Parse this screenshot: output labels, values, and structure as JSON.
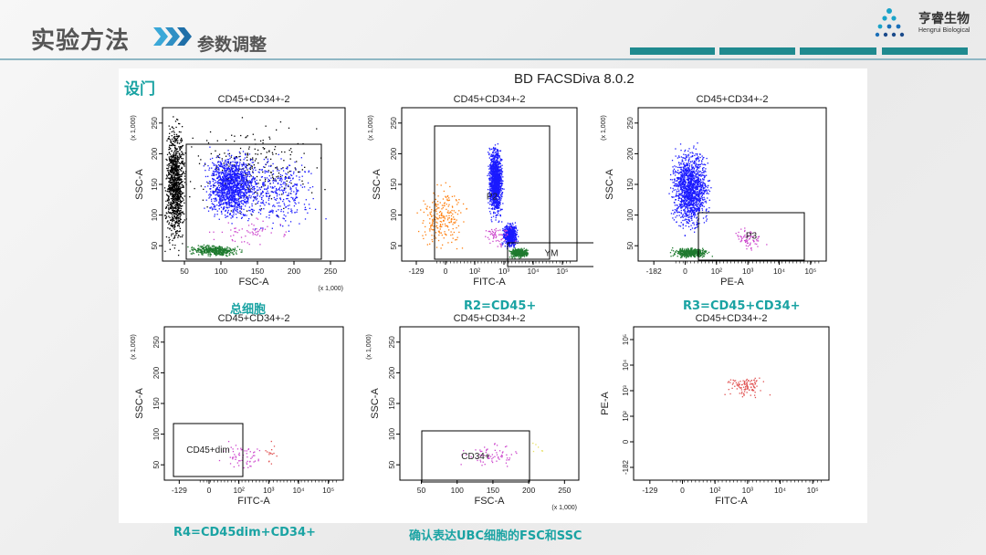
{
  "header": {
    "title": "实验方法",
    "subtitle": "参数调整",
    "brand_cn": "亨睿生物",
    "brand_en": "Hengrui Biological",
    "accent": "#1f8a8f"
  },
  "panel": {
    "label": "设门",
    "software_title": "BD FACSDiva 8.0.2"
  },
  "chart_data": [
    {
      "type": "scatter",
      "plot_title": "CD45+CD34+-2",
      "xlabel": "FSC-A",
      "ylabel": "SSC-A",
      "x_ticks": [
        "50",
        "100",
        "150",
        "200",
        "250"
      ],
      "x_mult": "(x 1,000)",
      "y_ticks": [
        "50",
        "100",
        "150",
        "200",
        "250"
      ],
      "y_mult": "(x 1,000)",
      "gates": [
        {
          "name": ""
        }
      ],
      "caption": "总细胞",
      "populations": [
        {
          "color": "#000000",
          "x": [
            0,
            35
          ],
          "y": [
            0,
            260
          ],
          "n": 1100
        },
        {
          "color": "#000000",
          "x": [
            0,
            260
          ],
          "y": [
            60,
            260
          ],
          "n": 260
        },
        {
          "color": "#1a1aff",
          "x": [
            55,
            140
          ],
          "y": [
            60,
            200
          ],
          "n": 1300
        },
        {
          "color": "#1a1aff",
          "x": [
            80,
            240
          ],
          "y": [
            40,
            200
          ],
          "n": 420
        },
        {
          "color": "#1e7a2e",
          "x": [
            30,
            120
          ],
          "y": [
            8,
            30
          ],
          "n": 420
        },
        {
          "color": "#cc44cc",
          "x": [
            40,
            200
          ],
          "y": [
            20,
            80
          ],
          "n": 60
        }
      ]
    },
    {
      "type": "scatter",
      "plot_title": "CD45+CD34+-2",
      "xlabel": "FITC-A",
      "ylabel": "SSC-A",
      "x_ticks": [
        "-129",
        "0",
        "10²",
        "10³",
        "10⁴",
        "10⁵"
      ],
      "y_ticks": [
        "50",
        "100",
        "150",
        "200",
        "250"
      ],
      "y_mult": "(x 1,000)",
      "gates": [
        {
          "name": "P2"
        },
        {
          "name": "YM"
        }
      ],
      "caption": "R2=CD45+",
      "populations": [
        {
          "color": "#1a1aff",
          "x": [
            2.3,
            2.9
          ],
          "y": [
            60,
            210
          ],
          "n": 1300
        },
        {
          "color": "#1a1aff",
          "x": [
            2.8,
            3.4
          ],
          "y": [
            20,
            70
          ],
          "n": 600
        },
        {
          "color": "#1e7a2e",
          "x": [
            3.0,
            3.8
          ],
          "y": [
            5,
            25
          ],
          "n": 400
        },
        {
          "color": "#ff7f0e",
          "x": [
            -0.3,
            1.8
          ],
          "y": [
            5,
            150
          ],
          "n": 230
        },
        {
          "color": "#cc44cc",
          "x": [
            2.0,
            3.3
          ],
          "y": [
            20,
            70
          ],
          "n": 60
        }
      ]
    },
    {
      "type": "scatter",
      "plot_title": "CD45+CD34+-2",
      "xlabel": "PE-A",
      "ylabel": "SSC-A",
      "x_ticks": [
        "-182",
        "0",
        "10²",
        "10³",
        "10⁴",
        "10⁵"
      ],
      "y_ticks": [
        "50",
        "100",
        "150",
        "200",
        "250"
      ],
      "y_mult": "(x 1,000)",
      "gates": [
        {
          "name": "P3"
        }
      ],
      "caption": "R3=CD45+CD34+",
      "populations": [
        {
          "color": "#1a1aff",
          "x": [
            0.3,
            1.8
          ],
          "y": [
            40,
            210
          ],
          "n": 1400
        },
        {
          "color": "#1e7a2e",
          "x": [
            0.3,
            1.8
          ],
          "y": [
            5,
            25
          ],
          "n": 400
        },
        {
          "color": "#cc44cc",
          "x": [
            2.2,
            3.6
          ],
          "y": [
            15,
            65
          ],
          "n": 70
        }
      ]
    },
    {
      "type": "scatter",
      "plot_title": "CD45+CD34+-2",
      "xlabel": "FITC-A",
      "ylabel": "SSC-A",
      "x_ticks": [
        "-129",
        "0",
        "10²",
        "10³",
        "10⁴",
        "10⁵"
      ],
      "y_ticks": [
        "50",
        "100",
        "150",
        "200",
        "250"
      ],
      "y_mult": "(x 1,000)",
      "gates": [
        {
          "name": "CD45+dim"
        }
      ],
      "caption": "R4=CD45dim+CD34+",
      "populations": [
        {
          "color": "#cc44cc",
          "x": [
            1.0,
            3.0
          ],
          "y": [
            10,
            70
          ],
          "n": 60
        },
        {
          "color": "#e05050",
          "x": [
            2.6,
            3.4
          ],
          "y": [
            20,
            80
          ],
          "n": 15
        }
      ]
    },
    {
      "type": "scatter",
      "plot_title": "CD45+CD34+-2",
      "xlabel": "FSC-A",
      "ylabel": "SSC-A",
      "x_ticks": [
        "50",
        "100",
        "150",
        "200",
        "250"
      ],
      "x_mult": "(x 1,000)",
      "y_ticks": [
        "50",
        "100",
        "150",
        "200",
        "250"
      ],
      "y_mult": "(x 1,000)",
      "gates": [
        {
          "name": "CD34+"
        }
      ],
      "caption": "确认表达UBC细胞的FSC和SSC",
      "populations": [
        {
          "color": "#cc44cc",
          "x": [
            80,
            190
          ],
          "y": [
            15,
            70
          ],
          "n": 70
        },
        {
          "color": "#e8e060",
          "x": [
            180,
            220
          ],
          "y": [
            40,
            70
          ],
          "n": 6
        }
      ]
    },
    {
      "type": "scatter",
      "plot_title": "CD45+CD34+-2",
      "xlabel": "FITC-A",
      "ylabel": "PE-A",
      "x_ticks": [
        "-129",
        "0",
        "10²",
        "10³",
        "10⁴",
        "10⁵"
      ],
      "y_ticks": [
        "-182",
        "0",
        "10²",
        "10³",
        "10⁴",
        "10⁵"
      ],
      "gates": [],
      "caption": "",
      "populations": [
        {
          "color": "#e05050",
          "x": [
            2.1,
            3.6
          ],
          "y": [
            2.6,
            3.6
          ],
          "n": 110
        }
      ]
    }
  ]
}
